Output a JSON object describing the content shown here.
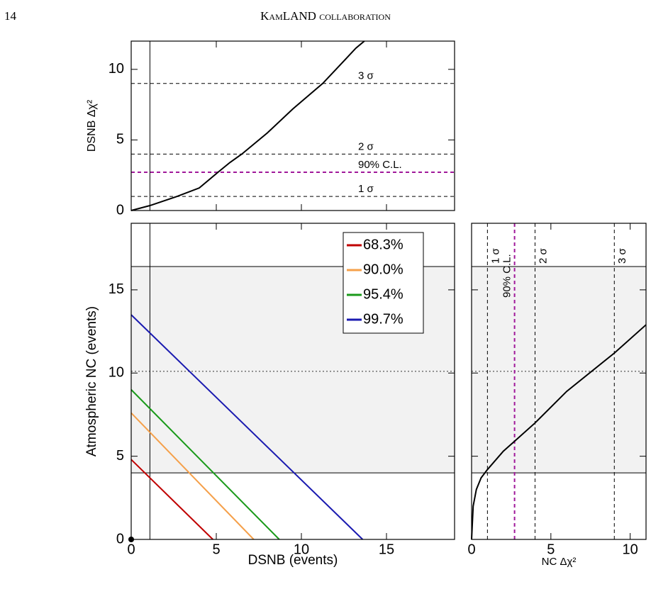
{
  "header": {
    "page": "14",
    "running_title": "KamLAND collaboration"
  },
  "chart_data": [
    {
      "type": "line",
      "ylabel": "DSNB Δχ²",
      "xlim": [
        0,
        19
      ],
      "xticks": [
        0,
        5,
        10,
        15
      ],
      "show_xtick_labels": false,
      "ylim": [
        0,
        12
      ],
      "yticks": [
        0,
        5,
        10
      ],
      "hlines": [
        {
          "value": 1,
          "label": "1 σ",
          "color": "#000000",
          "style": "dashed"
        },
        {
          "value": 2.71,
          "label": "90% C.L.",
          "color": "#a0189a",
          "style": "dashed"
        },
        {
          "value": 4,
          "label": "2 σ",
          "color": "#000000",
          "style": "dashed"
        },
        {
          "value": 9,
          "label": "3 σ",
          "color": "#000000",
          "style": "dashed"
        }
      ],
      "vlines": [
        {
          "value": 1.1,
          "color": "#000000",
          "style": "solid"
        }
      ],
      "series": [
        {
          "color": "#000000",
          "x": [
            0,
            1.1,
            2.7,
            4,
            5.1,
            5.8,
            6.5,
            8,
            9.5,
            11.25,
            12.5,
            13.2,
            13.7
          ],
          "values": [
            0,
            0.35,
            1,
            1.6,
            2.71,
            3.4,
            4,
            5.5,
            7.2,
            9,
            10.6,
            11.5,
            12
          ]
        }
      ]
    },
    {
      "type": "line",
      "xlabel": "DSNB (events)",
      "ylabel": "Atmospheric NC (events)",
      "xlim": [
        0,
        19
      ],
      "xticks": [
        0,
        5,
        10,
        15
      ],
      "ylim": [
        0,
        19
      ],
      "yticks": [
        0,
        5,
        10,
        15
      ],
      "band": {
        "range": [
          4,
          16.4
        ],
        "center": 10.1,
        "color": "#f2f2f2"
      },
      "vlines": [
        {
          "value": 1.1,
          "color": "#000000",
          "style": "solid"
        }
      ],
      "series": [
        {
          "name": "68.3%",
          "color": "#c00000",
          "x": [
            0,
            4.8
          ],
          "values": [
            4.8,
            0
          ]
        },
        {
          "name": "90.0%",
          "color": "#f5a04a",
          "x": [
            0,
            7.2
          ],
          "values": [
            7.6,
            0
          ]
        },
        {
          "name": "95.4%",
          "color": "#1a9a1a",
          "x": [
            0,
            8.7
          ],
          "values": [
            9.0,
            0
          ]
        },
        {
          "name": "99.7%",
          "color": "#1a1ab0",
          "x": [
            0,
            13.6
          ],
          "values": [
            13.5,
            0
          ]
        }
      ]
    },
    {
      "type": "line",
      "xlabel": "NC Δχ²",
      "xlim": [
        0,
        11
      ],
      "xticks": [
        0,
        5,
        10
      ],
      "ylim": [
        0,
        19
      ],
      "yticks": [
        0,
        5,
        10,
        15
      ],
      "show_ytick_labels": false,
      "band": {
        "range": [
          4,
          16.4
        ],
        "center": 10.1,
        "color": "#f2f2f2"
      },
      "vlines": [
        {
          "value": 1,
          "label": "1 σ",
          "color": "#000000",
          "style": "dashed"
        },
        {
          "value": 2.71,
          "label": "90% C.L.",
          "color": "#a0189a",
          "style": "dashed"
        },
        {
          "value": 4,
          "label": "2 σ",
          "color": "#000000",
          "style": "dashed"
        },
        {
          "value": 9,
          "label": "3 σ",
          "color": "#000000",
          "style": "dashed"
        }
      ],
      "series": [
        {
          "color": "#000000",
          "x": [
            0,
            0.1,
            0.3,
            0.6,
            1,
            2,
            2.71,
            4,
            6,
            9,
            11
          ],
          "values": [
            0,
            2,
            3,
            3.7,
            4.2,
            5.3,
            5.9,
            7,
            8.9,
            11.2,
            12.9
          ]
        }
      ]
    }
  ]
}
